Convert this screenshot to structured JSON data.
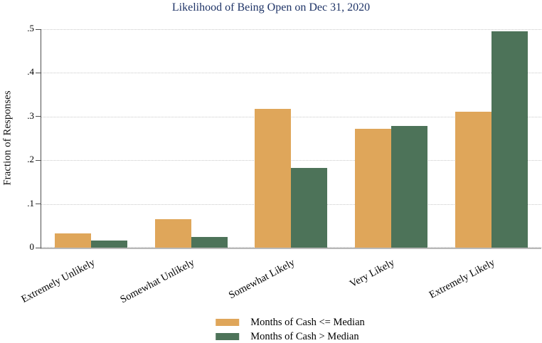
{
  "chart_data": {
    "type": "bar",
    "title": "Likelihood of Being Open on Dec 31, 2020",
    "title_color": "#1F3467",
    "ylabel": "Fraction of Responses",
    "xlabel": "",
    "categories": [
      "Extremely Unlikely",
      "Somewhat Unlikely",
      "Somewhat Likely",
      "Very Likely",
      "Extremely Likely"
    ],
    "series": [
      {
        "name": "Months of Cash <= Median",
        "color": "#DFA65A",
        "values": [
          0.032,
          0.065,
          0.318,
          0.272,
          0.311
        ]
      },
      {
        "name": "Months of Cash > Median",
        "color": "#4D7359",
        "values": [
          0.017,
          0.025,
          0.183,
          0.278,
          0.495
        ]
      }
    ],
    "ylim": [
      0,
      0.5
    ],
    "yticks": [
      {
        "value": 0,
        "label": "0"
      },
      {
        "value": 0.1,
        "label": ".1"
      },
      {
        "value": 0.2,
        "label": ".2"
      },
      {
        "value": 0.3,
        "label": ".3"
      },
      {
        "value": 0.4,
        "label": ".4"
      },
      {
        "value": 0.5,
        "label": ".5"
      }
    ],
    "grid": {
      "horizontal": "dotted",
      "color": "#C9C9C9"
    },
    "legend_position": "bottom-center",
    "axis_color": "#4F4F4F",
    "baseline_color": "#B8B8B8",
    "xlabel_angle_deg": -28
  }
}
